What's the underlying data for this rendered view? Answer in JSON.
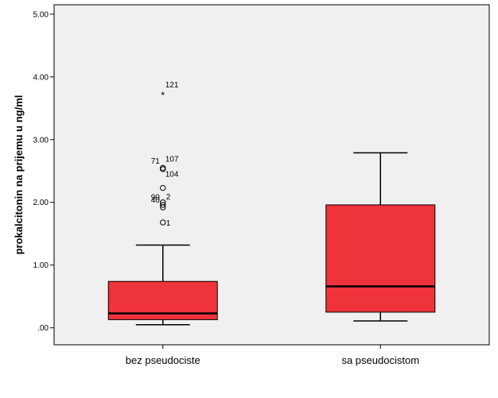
{
  "chart_data": {
    "type": "boxplot",
    "ylabel": "prokalcitonin na prijemu u ng/ml",
    "xlabel": "",
    "ylim": [
      -0.27,
      5.15
    ],
    "yticks": [
      {
        "value": 0,
        "label": ".00"
      },
      {
        "value": 1,
        "label": "1.00"
      },
      {
        "value": 2,
        "label": "2.00"
      },
      {
        "value": 3,
        "label": "3.00"
      },
      {
        "value": 4,
        "label": "4.00"
      },
      {
        "value": 5,
        "label": "5.00"
      }
    ],
    "categories": [
      "bez pseudociste",
      "sa pseudocistom"
    ],
    "boxes": [
      {
        "category": "bez pseudociste",
        "whisker_low": 0.05,
        "q1": 0.13,
        "median": 0.23,
        "q3": 0.74,
        "whisker_high": 1.32,
        "outliers": [
          {
            "value": 1.68,
            "label": "1",
            "marker": "circle"
          },
          {
            "value": 1.92,
            "label": "40",
            "marker": "circle"
          },
          {
            "value": 1.96,
            "label": "2",
            "marker": "circle"
          },
          {
            "value": 2.0,
            "label": "90",
            "marker": "circle"
          },
          {
            "value": 2.23,
            "label": "104",
            "marker": "circle"
          },
          {
            "value": 2.53,
            "label": "71",
            "marker": "circle"
          },
          {
            "value": 2.55,
            "label": "107",
            "marker": "circle"
          },
          {
            "value": 3.72,
            "label": "121",
            "marker": "star"
          }
        ]
      },
      {
        "category": "sa pseudocistom",
        "whisker_low": 0.11,
        "q1": 0.25,
        "median": 0.66,
        "q3": 1.96,
        "whisker_high": 2.79,
        "outliers": []
      }
    ],
    "colors": {
      "box_fill": "#ef333b",
      "plot_background": "#f0f0f0",
      "line": "#000000"
    }
  }
}
